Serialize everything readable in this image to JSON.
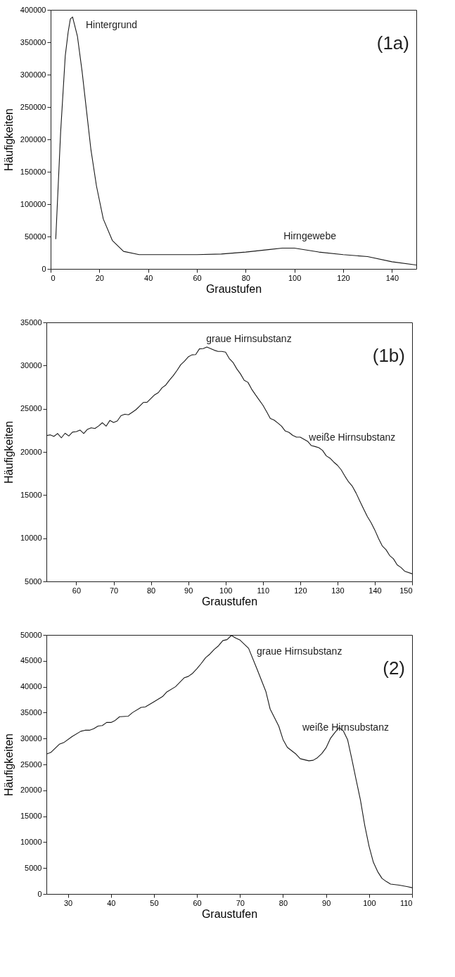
{
  "chart_data": [
    {
      "type": "line",
      "title": "(1a)",
      "xlabel": "Graustufen",
      "ylabel": "Häufigkeiten",
      "xlim": [
        0,
        150
      ],
      "xticks": [
        0,
        20,
        40,
        60,
        80,
        100,
        120,
        140
      ],
      "ylim": [
        0,
        400000
      ],
      "yticks": [
        0,
        50000,
        100000,
        150000,
        200000,
        250000,
        300000,
        350000,
        400000
      ],
      "x": [
        2.1,
        4.1,
        6,
        7.2,
        8.1,
        9,
        11,
        12.9,
        14.7,
        16.5,
        18.8,
        21.6,
        25.3,
        29.9,
        36.3,
        45,
        60,
        70,
        80,
        90,
        95,
        100,
        110,
        120,
        130,
        140,
        150
      ],
      "series": [
        {
          "color": "#1a1a1a",
          "values": [
            46000,
            211000,
            329000,
            366000,
            386000,
            389000,
            359000,
            305000,
            245000,
            185000,
            128000,
            77000,
            44000,
            27000,
            22000,
            22000,
            22000,
            23000,
            26000,
            30000,
            32000,
            32000,
            26000,
            22000,
            19000,
            11000,
            6000
          ]
        }
      ],
      "annotations": [
        "Hintergrund",
        "Hirngewebe"
      ]
    },
    {
      "type": "line",
      "title": "(1b)",
      "xlabel": "Graustufen",
      "ylabel": "Häufigkeiten",
      "xlim": [
        52,
        150
      ],
      "xticks": [
        60,
        70,
        80,
        90,
        100,
        110,
        120,
        130,
        140,
        150
      ],
      "ylim": [
        5000,
        35000
      ],
      "yticks": [
        5000,
        10000,
        15000,
        20000,
        25000,
        30000,
        35000
      ],
      "x": [
        52,
        53,
        54,
        55,
        56,
        57,
        58,
        59,
        60,
        61,
        62,
        63,
        64,
        65,
        66,
        67,
        68,
        69,
        70,
        71,
        72,
        73,
        74,
        75,
        76,
        77,
        78,
        79,
        80,
        81,
        82,
        83,
        84,
        85,
        86,
        87,
        88,
        89,
        90,
        91,
        92,
        93,
        94,
        95,
        96,
        97,
        98,
        99,
        100,
        101,
        102,
        103,
        104,
        105,
        106,
        107,
        108,
        109,
        110,
        111,
        112,
        113,
        114,
        115,
        116,
        117,
        118,
        119,
        120,
        121,
        122,
        123,
        124,
        125,
        126,
        127,
        128,
        129,
        130,
        131,
        132,
        133,
        134,
        135,
        136,
        137,
        138,
        139,
        140,
        141,
        142,
        143,
        144,
        145,
        146,
        147,
        148,
        150
      ],
      "series": [
        {
          "color": "#1a1a1a",
          "values": [
            21890,
            21970,
            21790,
            22130,
            21630,
            22160,
            21840,
            22290,
            22340,
            22530,
            22130,
            22610,
            22790,
            22710,
            23010,
            23380,
            22980,
            23640,
            23400,
            23590,
            24200,
            24360,
            24300,
            24590,
            24890,
            25310,
            25730,
            25760,
            26180,
            26610,
            26870,
            27430,
            27750,
            28330,
            28830,
            29440,
            30100,
            30500,
            31000,
            31240,
            31270,
            31930,
            31960,
            32140,
            31960,
            31770,
            31640,
            31640,
            31560,
            30820,
            30370,
            29630,
            29040,
            28300,
            28060,
            27270,
            26630,
            26020,
            25420,
            24670,
            23880,
            23690,
            23350,
            22980,
            22420,
            22260,
            21920,
            21710,
            21710,
            21470,
            21230,
            20730,
            20620,
            20490,
            20170,
            19540,
            19270,
            18820,
            18450,
            17920,
            17180,
            16520,
            16010,
            15220,
            14300,
            13400,
            12520,
            11810,
            10960,
            9980,
            9110,
            8680,
            7990,
            7620,
            6910,
            6620,
            6190,
            5880
          ]
        }
      ],
      "annotations": [
        "graue Hirnsubstanz",
        "weiße Hirnsubstanz"
      ]
    },
    {
      "type": "line",
      "title": "(2)",
      "xlabel": "Graustufen",
      "ylabel": "Häufigkeiten",
      "xlim": [
        25,
        110
      ],
      "xticks": [
        30,
        40,
        50,
        60,
        70,
        80,
        90,
        100,
        110
      ],
      "ylim": [
        0,
        50000
      ],
      "yticks": [
        0,
        5000,
        10000,
        15000,
        20000,
        25000,
        30000,
        35000,
        40000,
        45000,
        50000
      ],
      "x": [
        25,
        26,
        28,
        29,
        31,
        33,
        34,
        35,
        36,
        37,
        38,
        39,
        40,
        41,
        42,
        44,
        45,
        47,
        48,
        50,
        52,
        53,
        55,
        57,
        58,
        59,
        60,
        61,
        62,
        63,
        64,
        65,
        66,
        67,
        68,
        69,
        70,
        72,
        74,
        76,
        77,
        79,
        80,
        81,
        83,
        84,
        86,
        87,
        88,
        89,
        90,
        91,
        92,
        93,
        94,
        95,
        96,
        97,
        98,
        99,
        100,
        101,
        102,
        103,
        104,
        105,
        107,
        109,
        110
      ],
      "series": [
        {
          "color": "#1a1a1a",
          "values": [
            27000,
            27300,
            28900,
            29200,
            30400,
            31400,
            31600,
            31600,
            31900,
            32400,
            32500,
            33100,
            33100,
            33500,
            34200,
            34300,
            35000,
            36000,
            36100,
            37100,
            38100,
            39000,
            40000,
            41700,
            42000,
            42600,
            43500,
            44500,
            45600,
            46300,
            47200,
            47900,
            48900,
            49100,
            49900,
            49400,
            49000,
            47400,
            43300,
            39100,
            35700,
            32400,
            29800,
            28300,
            27000,
            26100,
            25700,
            25800,
            26300,
            27100,
            28200,
            30000,
            31100,
            32100,
            31500,
            29800,
            26000,
            22000,
            18100,
            13200,
            9200,
            6100,
            4300,
            3000,
            2400,
            1900,
            1700,
            1400,
            1200
          ]
        }
      ],
      "annotations": [
        "graue Hirnsubstanz",
        "weiße Hirnsubstanz"
      ]
    }
  ]
}
